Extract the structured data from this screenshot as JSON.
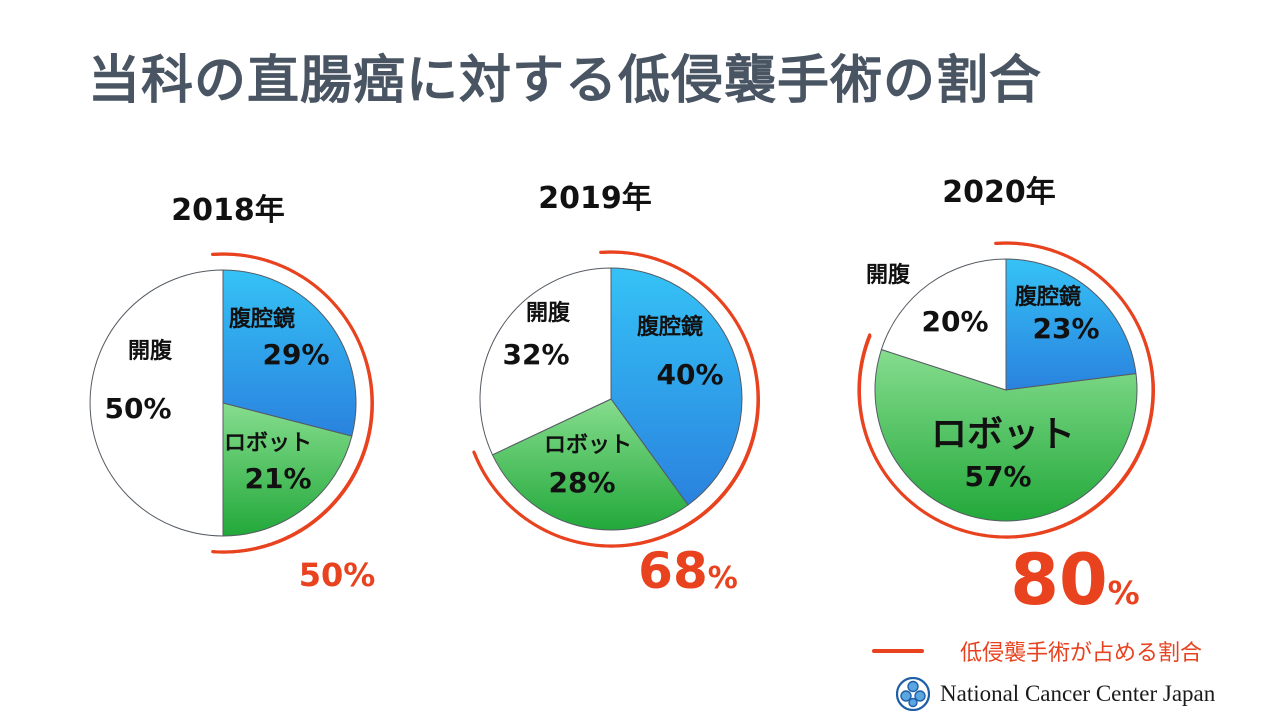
{
  "title": "当科の直腸癌に対する低侵襲手術の割合",
  "colors": {
    "laparoscopy": "#3a9be3",
    "robot": "#3fb954",
    "open": "#ffffff",
    "highlight": "#e8421f"
  },
  "chart_data": [
    {
      "type": "pie",
      "title": "2018年",
      "slices": [
        {
          "label": "腹腔鏡",
          "value": 29,
          "value_label": "29%"
        },
        {
          "label": "ロボット",
          "value": 21,
          "value_label": "21%"
        },
        {
          "label": "開腹",
          "value": 50,
          "value_label": "50%"
        }
      ],
      "minimally_invasive_label": "50%"
    },
    {
      "type": "pie",
      "title": "2019年",
      "slices": [
        {
          "label": "腹腔鏡",
          "value": 40,
          "value_label": "40%"
        },
        {
          "label": "ロボット",
          "value": 28,
          "value_label": "28%"
        },
        {
          "label": "開腹",
          "value": 32,
          "value_label": "32%"
        }
      ],
      "minimally_invasive_label": "68%"
    },
    {
      "type": "pie",
      "title": "2020年",
      "slices": [
        {
          "label": "腹腔鏡",
          "value": 23,
          "value_label": "23%"
        },
        {
          "label": "ロボット",
          "value": 57,
          "value_label": "57%"
        },
        {
          "label": "開腹",
          "value": 20,
          "value_label": "20%"
        }
      ],
      "minimally_invasive_label": "80%"
    }
  ],
  "legend": {
    "label": "低侵襲手術が占める割合"
  },
  "footer": {
    "org_name": "National Cancer Center Japan",
    "logo_icon": "ncc-logo-icon"
  }
}
